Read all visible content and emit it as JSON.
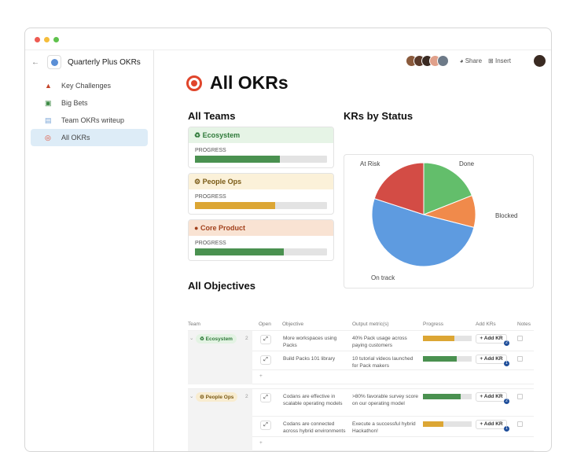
{
  "sidebar": {
    "doc_title": "Quarterly Plus OKRs",
    "items": [
      {
        "label": "Key Challenges",
        "icon": "volcano-icon"
      },
      {
        "label": "Big Bets",
        "icon": "money-icon"
      },
      {
        "label": "Team OKRs writeup",
        "icon": "document-icon"
      },
      {
        "label": "All OKRs",
        "icon": "target-icon",
        "active": true
      }
    ]
  },
  "topbar": {
    "share": "Share",
    "insert": "Insert"
  },
  "page_title": "All OKRs",
  "teams": {
    "heading": "All Teams",
    "progress_label": "PROGRESS",
    "cards": [
      {
        "name": "Ecosystem",
        "icon": "recycle-icon",
        "progress": 64,
        "color": "#4a9150",
        "bg": "#e6f4e6",
        "text": "#2f7a3a"
      },
      {
        "name": "People Ops",
        "icon": "gear-icon",
        "progress": 61,
        "color": "#dca634",
        "bg": "#fbf1d9",
        "text": "#7a5a15"
      },
      {
        "name": "Core Product",
        "icon": "apple-icon",
        "progress": 67,
        "color": "#4a9150",
        "bg": "#f9e3d3",
        "text": "#a2411c"
      }
    ]
  },
  "chart_data": {
    "type": "pie",
    "title": "KRs by Status",
    "slices": [
      {
        "label": "Done",
        "value": 19,
        "color": "#63be6b"
      },
      {
        "label": "Blocked",
        "value": 10,
        "color": "#f08a4b"
      },
      {
        "label": "On track",
        "value": 51,
        "color": "#5e9be0"
      },
      {
        "label": "At Risk",
        "value": 20,
        "color": "#d34c45"
      }
    ]
  },
  "objectives": {
    "heading": "All Objectives",
    "columns": [
      "Team",
      "Open",
      "Objective",
      "Output metric(s)",
      "Progress",
      "Add KRs",
      "Notes"
    ],
    "add_kr": "+ Add KR",
    "add_row": "+",
    "groups": [
      {
        "team": "Ecosystem",
        "count": "2",
        "rows": [
          {
            "objective": "More workspaces using Packs",
            "metric": "40% Pack usage across paying customers",
            "progress": 65,
            "color": "#dca634",
            "krs": "2"
          },
          {
            "objective": "Build Packs 101 library",
            "metric": "10 tutorial videos launched for Pack makers",
            "progress": 70,
            "color": "#4a9150",
            "krs": "1"
          }
        ]
      },
      {
        "team": "People Ops",
        "count": "2",
        "rows": [
          {
            "objective": "Codans are effective in scalable operating models",
            "metric": ">80% favorable survey score on our operating model",
            "progress": 78,
            "color": "#4a9150",
            "krs": "2"
          },
          {
            "objective": "Codans are connected across hybrid environments",
            "metric": "Execute a successful hybrid Hackathon!",
            "progress": 42,
            "color": "#dca634",
            "krs": "1"
          }
        ]
      }
    ]
  }
}
